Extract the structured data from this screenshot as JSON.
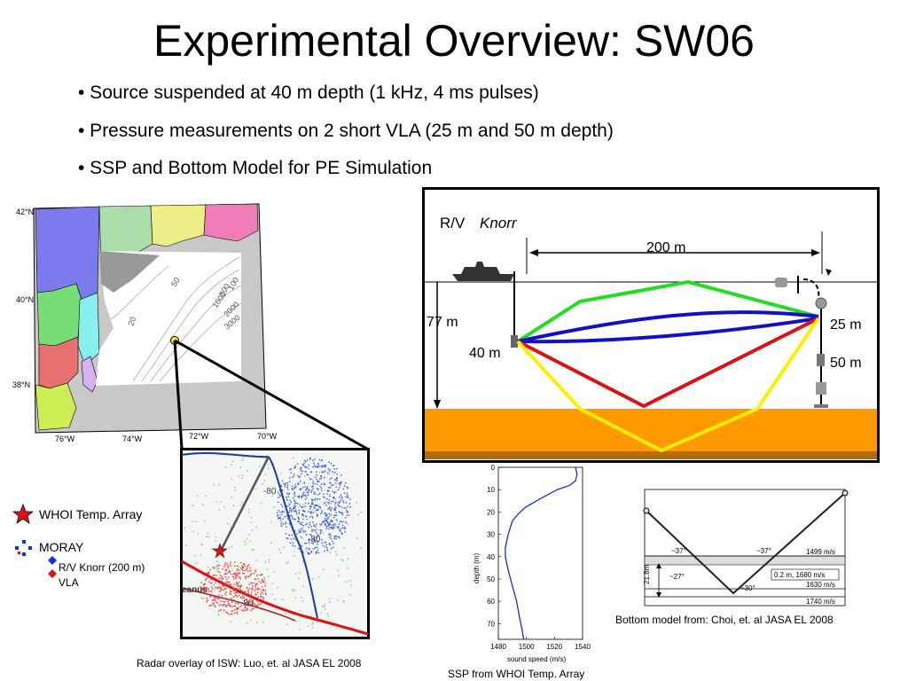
{
  "title": "Experimental Overview:  SW06",
  "bullets": [
    "• Source suspended at 40 m depth (1 kHz, 4 ms pulses)",
    "• Pressure measurements on 2 short VLA (25 m and 50 m depth)",
    "• SSP and Bottom Model for PE Simulation"
  ],
  "map": {
    "lat_labels": [
      "42°N",
      "40°N",
      "38°N"
    ],
    "lon_labels": [
      "76°W",
      "74°W",
      "72°W",
      "70°W"
    ],
    "contours": [
      "50",
      "100",
      "500",
      "1000",
      "2000",
      "3000",
      "20"
    ]
  },
  "legend": {
    "whoi": "WHOI Temp. Array",
    "moray": "MORAY",
    "knorr": "R/V Knorr (200 m)",
    "vla": "VLA"
  },
  "radar": {
    "label_80a": "-80",
    "label_80b": "-80",
    "label_80c": "-80",
    "label_ship": "eanus",
    "caption": "Radar overlay of ISW:  Luo, et. al JASA EL 2008"
  },
  "schematic": {
    "ship_prefix": "R/V ",
    "ship_name": "Knorr",
    "range": "200 m",
    "water_depth": "77 m",
    "source_depth": "40 m",
    "vla_top": "25 m",
    "vla_bottom": "50 m",
    "colors": {
      "green": "#22dd22",
      "blue": "#1111cc",
      "red": "#dd1111",
      "yellow": "#ffee00",
      "seabed": "#ff9900"
    }
  },
  "chart_data": {
    "type": "line",
    "title": "",
    "xlabel": "sound speed (m/s)",
    "ylabel": "depth (m)",
    "xlim": [
      1480,
      1540
    ],
    "ylim": [
      0,
      77
    ],
    "y_inverted": true,
    "xticks": [
      1480,
      1500,
      1520,
      1540
    ],
    "yticks": [
      0,
      10,
      20,
      30,
      40,
      50,
      60,
      70
    ],
    "grid": false,
    "series": [
      {
        "points": [
          [
            1535,
            0
          ],
          [
            1536,
            3
          ],
          [
            1535,
            6
          ],
          [
            1531,
            8
          ],
          [
            1522,
            10
          ],
          [
            1510,
            14
          ],
          [
            1499,
            18
          ],
          [
            1494,
            21
          ],
          [
            1490,
            24
          ],
          [
            1487,
            30
          ],
          [
            1485,
            36
          ],
          [
            1485,
            40
          ],
          [
            1487,
            46
          ],
          [
            1490,
            53
          ],
          [
            1493,
            60
          ],
          [
            1495,
            67
          ],
          [
            1497,
            73
          ],
          [
            1498,
            77
          ]
        ]
      }
    ],
    "caption": "SSP from WHOI Temp. Array"
  },
  "bottom_model": {
    "ang_left": "~37°",
    "ang_mid": "~27°",
    "ang_bot": "~30°",
    "ang_right": "~37°",
    "speed_water": "1499 m/s",
    "layer": "0.2 m, 1680 m/s",
    "speed_sed": "1630 m/s",
    "speed_base": "1740 m/s",
    "thickness": "21.8m",
    "caption": "Bottom model from:  Choi, et. al JASA EL 2008"
  }
}
